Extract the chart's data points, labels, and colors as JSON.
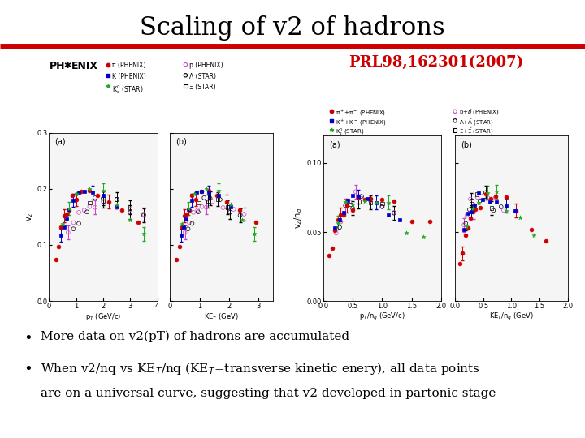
{
  "title": "Scaling of v2 of hadrons",
  "title_fontsize": 22,
  "title_color": "black",
  "red_line_color": "#cc0000",
  "red_line_thickness": 5,
  "background_color": "#ffffff",
  "prl_text": "PRL98,162301(2007)",
  "prl_color": "#cc0000",
  "prl_fontsize": 13,
  "bullet1": "More data on v2(pT) of hadrons are accumulated",
  "bullet2_line1": "When v2/nq vs KE$_T$/nq (KE$_T$=transverse kinetic enery), all data points",
  "bullet2_line2": "are on a universal curve, suggesting that v2 developed in partonic stage",
  "bullet_fontsize": 11,
  "plot_bg": "#f0f0f0",
  "left_plot_bg": "#e8e8e8",
  "right_plot_bg": "#e8e8e8"
}
